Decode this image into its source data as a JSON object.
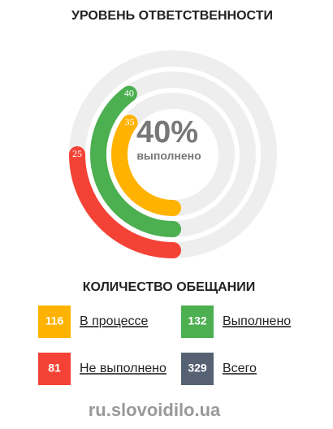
{
  "chart_data": {
    "type": "radial",
    "title": "УРОВЕНЬ ОТВЕТСТВЕННОСТИ",
    "center_value": "40%",
    "center_label": "выполнено",
    "series": [
      {
        "color": "#f44336",
        "values": [
          25
        ]
      },
      {
        "color": "#4caf50",
        "values": [
          40
        ]
      },
      {
        "color": "#ffb300",
        "values": [
          35
        ]
      }
    ],
    "ylim": [
      0,
      100
    ],
    "track_color": "#eeeeee"
  },
  "counts": {
    "title": "КОЛИЧЕСТВО ОБЕЩАНИИ",
    "items": [
      {
        "value": "116",
        "label": "В процессе",
        "color": "#ffb300"
      },
      {
        "value": "132",
        "label": "Выполнено",
        "color": "#4caf50"
      },
      {
        "value": "81",
        "label": "Не выполнено",
        "color": "#f44336"
      },
      {
        "value": "329",
        "label": "Всего",
        "color": "#566173"
      }
    ]
  },
  "watermark": "ru.slovoidilo.ua"
}
